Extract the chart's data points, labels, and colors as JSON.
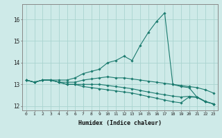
{
  "xlabel": "Humidex (Indice chaleur)",
  "bg_color": "#ceeae8",
  "grid_color": "#aad4d0",
  "line_color": "#1a7a6e",
  "xlim": [
    -0.5,
    23.5
  ],
  "ylim": [
    11.8,
    16.7
  ],
  "xticks": [
    0,
    1,
    2,
    3,
    4,
    5,
    6,
    7,
    8,
    9,
    10,
    11,
    12,
    13,
    14,
    15,
    16,
    17,
    18,
    19,
    20,
    21,
    22,
    23
  ],
  "yticks": [
    12,
    13,
    14,
    15,
    16
  ],
  "series": [
    [
      13.2,
      13.1,
      13.2,
      13.2,
      13.2,
      13.2,
      13.3,
      13.5,
      13.6,
      13.7,
      14.0,
      14.1,
      14.3,
      14.1,
      14.8,
      15.4,
      15.9,
      16.3,
      13.0,
      12.9,
      12.85,
      12.4,
      12.2,
      12.1
    ],
    [
      13.2,
      13.1,
      13.2,
      13.2,
      13.1,
      13.1,
      13.1,
      13.2,
      13.25,
      13.3,
      13.35,
      13.3,
      13.3,
      13.25,
      13.2,
      13.15,
      13.1,
      13.05,
      13.0,
      12.95,
      12.9,
      12.85,
      12.75,
      12.6
    ],
    [
      13.2,
      13.1,
      13.2,
      13.2,
      13.1,
      13.0,
      13.0,
      13.0,
      13.0,
      13.0,
      12.95,
      12.9,
      12.85,
      12.8,
      12.72,
      12.65,
      12.58,
      12.52,
      12.46,
      12.42,
      12.45,
      12.42,
      12.22,
      12.1
    ],
    [
      13.2,
      13.1,
      13.2,
      13.2,
      13.1,
      13.0,
      13.0,
      12.9,
      12.85,
      12.8,
      12.75,
      12.7,
      12.65,
      12.6,
      12.52,
      12.44,
      12.36,
      12.28,
      12.2,
      12.15,
      12.42,
      12.4,
      12.2,
      12.1
    ]
  ]
}
